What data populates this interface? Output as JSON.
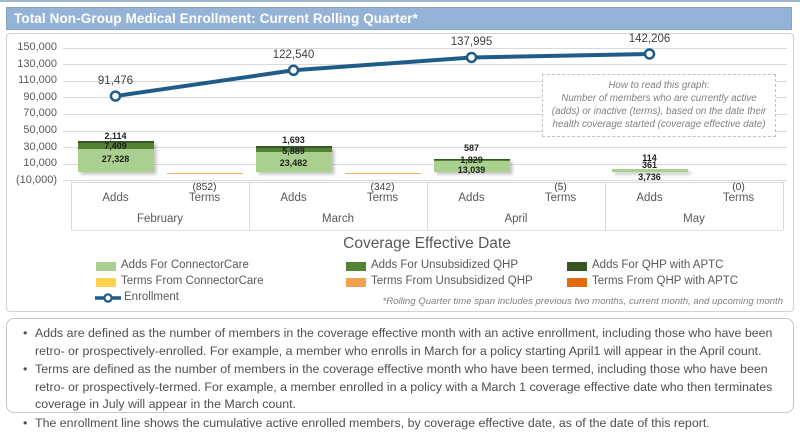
{
  "header": {
    "title": "Total Non-Group Medical Enrollment: Current Rolling Quarter*"
  },
  "chart_data": {
    "type": "combo: stacked bar (adds/terms) + line (enrollment)",
    "title": "Total Non-Group Medical Enrollment: Current Rolling Quarter*",
    "x_axis_title": "Coverage Effective Date",
    "categories": [
      "February",
      "March",
      "April",
      "May"
    ],
    "sub_categories": [
      "Adds",
      "Terms"
    ],
    "y_axis": {
      "min": -10000,
      "max": 150000,
      "tick_interval": 20000,
      "tick_labels": [
        "150,000",
        "130,000",
        "110,000",
        "90,000",
        "70,000",
        "50,000",
        "30,000",
        "10,000",
        "(10,000)"
      ],
      "grid": true
    },
    "bar_series": [
      {
        "name": "Adds For ConnectorCare",
        "color": "#a9d08e",
        "values": [
          27328,
          23482,
          13039,
          3736
        ]
      },
      {
        "name": "Adds For Unsubsidized QHP",
        "color": "#548235",
        "values": [
          7409,
          5889,
          1829,
          361
        ]
      },
      {
        "name": "Adds For QHP with APTC",
        "color": "#375623",
        "values": [
          2114,
          1693,
          587,
          114
        ]
      }
    ],
    "bar_value_labels_top_to_bottom": [
      [
        "2,114",
        "7,409",
        "27,328"
      ],
      [
        "1,693",
        "5,889",
        "23,482"
      ],
      [
        "587",
        "1,829",
        "13,039"
      ],
      [
        "114",
        "361",
        "3,736"
      ]
    ],
    "terms_totals": [
      -852,
      -342,
      -5,
      0
    ],
    "terms_total_labels": [
      "(852)",
      "(342)",
      "(5)",
      "(0)"
    ],
    "line_series": {
      "name": "Enrollment",
      "color": "#1f5c8a",
      "values": [
        91476,
        122540,
        137995,
        142206
      ],
      "labels": [
        "91,476",
        "122,540",
        "137,995",
        "142,206"
      ]
    },
    "annotation": {
      "title": "How to read this graph:",
      "body": "Number of members who are currently active (adds) or inactive (terms), based on the date their health coverage started (coverage effective date)"
    },
    "legend_position": "bottom"
  },
  "legend": {
    "items": [
      {
        "label": "Adds For ConnectorCare",
        "color": "#a9d08e",
        "type": "swatch"
      },
      {
        "label": "Adds For Unsubsidized QHP",
        "color": "#548235",
        "type": "swatch"
      },
      {
        "label": "Adds For QHP with APTC",
        "color": "#375623",
        "type": "swatch"
      },
      {
        "label": "Terms From ConnectorCare",
        "color": "#ffd34f",
        "type": "swatch"
      },
      {
        "label": "Terms From Unsubsidized QHP",
        "color": "#f0a04e",
        "type": "swatch"
      },
      {
        "label": "Terms From QHP with APTC",
        "color": "#e36c0a",
        "type": "swatch"
      },
      {
        "label": "Enrollment",
        "color": "#1f5c8a",
        "type": "line-marker"
      }
    ],
    "footnote": "*Rolling Quarter time span includes previous two months, current month, and upcoming month"
  },
  "notes": [
    "Adds are defined as the number of members in the coverage effective month with an active enrollment, including those who have been retro- or prospectively-enrolled.  For example, a member who enrolls in March for a policy starting April1 will appear in the April count.",
    "Terms are defined as the number of members in the coverage effective month who have been termed, including those who have been retro- or prospectively-termed.  For example, a member enrolled in a policy with a March 1 coverage effective date who then terminates coverage in July will appear in the March count.",
    "The enrollment line shows the cumulative active enrolled members, by coverage effective date, as of the date of this report."
  ]
}
